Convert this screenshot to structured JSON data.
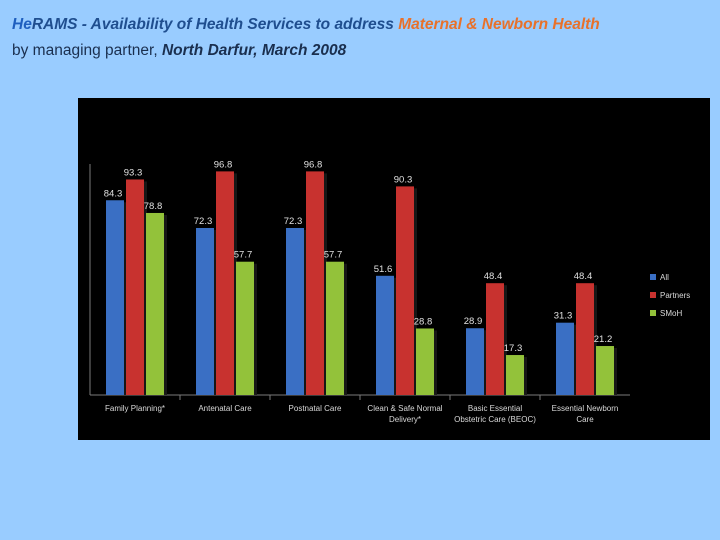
{
  "title": {
    "brand": "He",
    "main": "RAMS -  Availability of Health Services to address",
    "accent": "Maternal & Newborn Health",
    "line2_plain": "by managing partner, ",
    "line2_italic": "North Darfur, March 2008"
  },
  "colors": {
    "All": "#3a6fc4",
    "Partners": "#c8322f",
    "SMoH": "#93c23a"
  },
  "chart_data": {
    "type": "bar",
    "categories": [
      [
        "Family Planning*"
      ],
      [
        "Antenatal Care"
      ],
      [
        "Postnatal Care"
      ],
      [
        "Clean & Safe Normal",
        "Delivery*"
      ],
      [
        "Basic Essential",
        "Obstetric Care (BEOC)"
      ],
      [
        "Essential Newborn",
        "Care"
      ]
    ],
    "series": [
      {
        "name": "All",
        "values": [
          84.3,
          72.3,
          72.3,
          51.6,
          28.9,
          31.3
        ]
      },
      {
        "name": "Partners",
        "values": [
          93.3,
          96.8,
          96.8,
          90.3,
          48.4,
          48.4
        ]
      },
      {
        "name": "SMoH",
        "values": [
          78.8,
          57.7,
          57.7,
          28.8,
          17.3,
          21.2
        ]
      }
    ],
    "ylim": [
      0,
      100
    ],
    "yticks": [
      "0.0",
      "10.0",
      "20.0",
      "30.0",
      "40.0",
      "50.0",
      "60.0",
      "70.0",
      "80.0",
      "90.0",
      "100.0"
    ],
    "legend_position": "right",
    "grid": false
  }
}
